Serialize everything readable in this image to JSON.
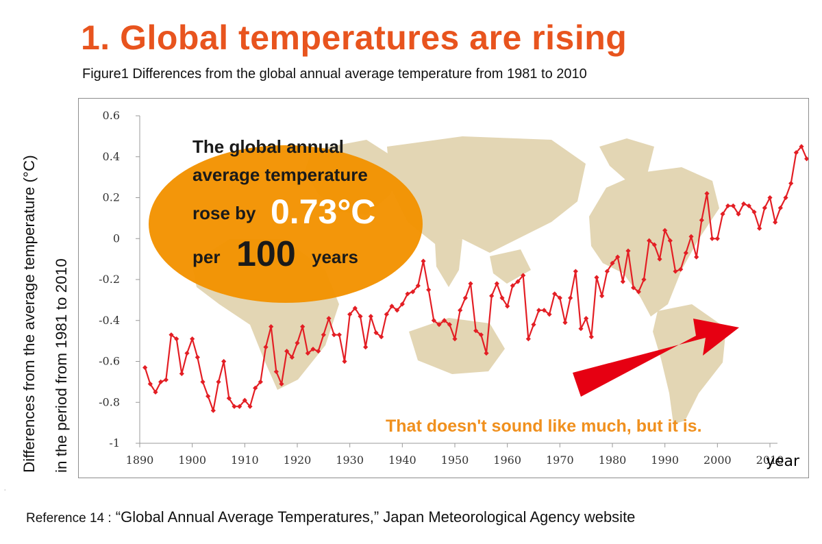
{
  "header": {
    "title": "1. Global temperatures are rising",
    "caption": "Figure1 Differences from the global annual average temperature from 1981 to 2010"
  },
  "y_axis_title": {
    "line1": "Differences from the average temperature (°C)",
    "line2": "in the period from 1981 to 2010"
  },
  "bubble": {
    "line1": "The global annual",
    "line2": "average temperature",
    "line3_prefix": "rose by",
    "value": "0.73°C",
    "line4_prefix": "per",
    "number": "100",
    "line4_suffix": "years"
  },
  "remark": "That doesn't sound like much, but it is.",
  "dot": "˙",
  "reference": {
    "label": "Reference 14 :",
    "text": "“Global Annual Average Temperatures,” Japan Meteorological Agency website"
  },
  "colors": {
    "title": "#e8541e",
    "line": "#e31e24",
    "bubble": "#f39200",
    "arrow": "#e60012",
    "map": "#e3d6b4",
    "remark": "#f0901e"
  },
  "chart_data": {
    "type": "line",
    "xlabel": "year",
    "ylabel": "",
    "xlim": [
      1890,
      2017
    ],
    "ylim": [
      -1,
      0.6
    ],
    "xticks": [
      1890,
      1900,
      1910,
      1920,
      1930,
      1940,
      1950,
      1960,
      1970,
      1980,
      1990,
      2000,
      2010
    ],
    "yticks": [
      0.6,
      0.4,
      0.2,
      0,
      -0.2,
      -0.4,
      -0.6,
      -0.8,
      -1
    ],
    "ytick_labels": [
      "0.6",
      "0.4",
      "0.2",
      "0",
      "-0.2",
      "-0.4",
      "-0.6",
      "-0.8",
      "-1"
    ],
    "grid": false,
    "x": [
      1891,
      1892,
      1893,
      1894,
      1895,
      1896,
      1897,
      1898,
      1899,
      1900,
      1901,
      1902,
      1903,
      1904,
      1905,
      1906,
      1907,
      1908,
      1909,
      1910,
      1911,
      1912,
      1913,
      1914,
      1915,
      1916,
      1917,
      1918,
      1919,
      1920,
      1921,
      1922,
      1923,
      1924,
      1925,
      1926,
      1927,
      1928,
      1929,
      1930,
      1931,
      1932,
      1933,
      1934,
      1935,
      1936,
      1937,
      1938,
      1939,
      1940,
      1941,
      1942,
      1943,
      1944,
      1945,
      1946,
      1947,
      1948,
      1949,
      1950,
      1951,
      1952,
      1953,
      1954,
      1955,
      1956,
      1957,
      1958,
      1959,
      1960,
      1961,
      1962,
      1963,
      1964,
      1965,
      1966,
      1967,
      1968,
      1969,
      1970,
      1971,
      1972,
      1973,
      1974,
      1975,
      1976,
      1977,
      1978,
      1979,
      1980,
      1981,
      1982,
      1983,
      1984,
      1985,
      1986,
      1987,
      1988,
      1989,
      1990,
      1991,
      1992,
      1993,
      1994,
      1995,
      1996,
      1997,
      1998,
      1999,
      2000,
      2001,
      2002,
      2003,
      2004,
      2005,
      2006,
      2007,
      2008,
      2009,
      2010,
      2011,
      2012,
      2013,
      2014,
      2015,
      2016,
      2017
    ],
    "series": [
      {
        "values": [
          -0.63,
          -0.71,
          -0.75,
          -0.7,
          -0.69,
          -0.47,
          -0.49,
          -0.66,
          -0.56,
          -0.49,
          -0.58,
          -0.7,
          -0.77,
          -0.84,
          -0.7,
          -0.6,
          -0.78,
          -0.82,
          -0.82,
          -0.79,
          -0.82,
          -0.73,
          -0.7,
          -0.53,
          -0.43,
          -0.65,
          -0.71,
          -0.55,
          -0.58,
          -0.51,
          -0.43,
          -0.56,
          -0.54,
          -0.55,
          -0.47,
          -0.39,
          -0.47,
          -0.47,
          -0.6,
          -0.37,
          -0.34,
          -0.38,
          -0.53,
          -0.38,
          -0.46,
          -0.48,
          -0.37,
          -0.33,
          -0.35,
          -0.32,
          -0.27,
          -0.26,
          -0.23,
          -0.11,
          -0.25,
          -0.4,
          -0.42,
          -0.4,
          -0.42,
          -0.49,
          -0.35,
          -0.29,
          -0.22,
          -0.45,
          -0.47,
          -0.56,
          -0.28,
          -0.22,
          -0.29,
          -0.33,
          -0.23,
          -0.21,
          -0.18,
          -0.49,
          -0.42,
          -0.35,
          -0.35,
          -0.37,
          -0.27,
          -0.29,
          -0.41,
          -0.29,
          -0.16,
          -0.44,
          -0.39,
          -0.48,
          -0.19,
          -0.28,
          -0.16,
          -0.12,
          -0.09,
          -0.21,
          -0.06,
          -0.24,
          -0.26,
          -0.2,
          -0.01,
          -0.03,
          -0.1,
          0.04,
          -0.01,
          -0.16,
          -0.15,
          -0.07,
          0.01,
          -0.09,
          0.09,
          0.22,
          0.0,
          0.0,
          0.12,
          0.16,
          0.16,
          0.12,
          0.17,
          0.16,
          0.13,
          0.05,
          0.15,
          0.2,
          0.08,
          0.15,
          0.2,
          0.27,
          0.42,
          0.45,
          0.39
        ]
      }
    ]
  }
}
